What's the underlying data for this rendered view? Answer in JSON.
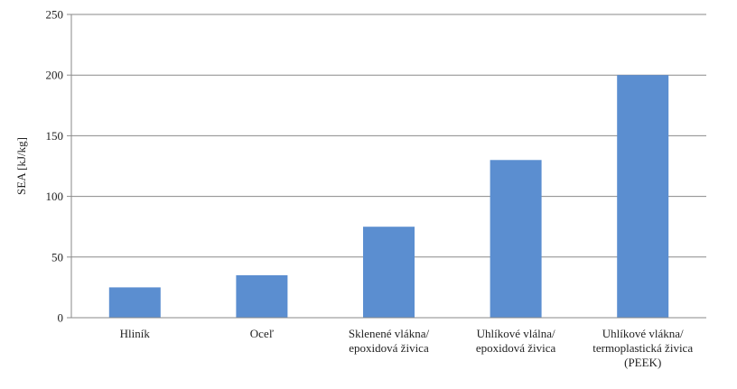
{
  "chart_data": {
    "type": "bar",
    "title": "",
    "xlabel": "",
    "ylabel": "SEA [kJ/kg]",
    "ylim": [
      0,
      250
    ],
    "yticks": [
      0,
      50,
      100,
      150,
      200,
      250
    ],
    "grid": "horizontal",
    "legend": "none",
    "bar_color": "#5b8ed0",
    "categories": [
      [
        "Hliník"
      ],
      [
        "Oceľ"
      ],
      [
        "Sklenené vlákna/",
        "epoxidová živica"
      ],
      [
        "Uhlíkové vlálna/",
        "epoxidová živica"
      ],
      [
        "Uhlíkové vlákna/",
        "termoplastická živica",
        "(PEEK)"
      ]
    ],
    "values": [
      25,
      35,
      75,
      130,
      200
    ]
  }
}
